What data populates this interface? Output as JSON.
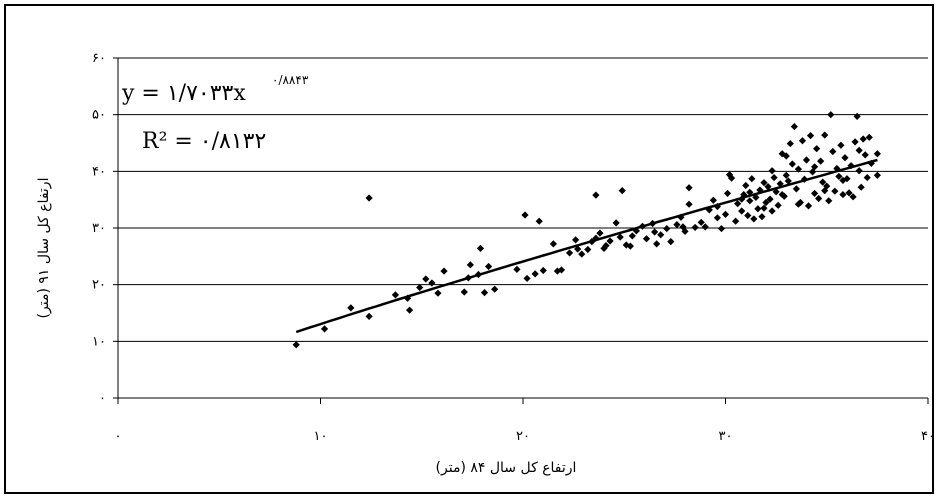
{
  "chart_data": {
    "type": "scatter",
    "xlabel": "ارتفاع کل سال ۸۴ (متر)",
    "ylabel": "ارتفاع کل سال ۹۱ (متر)",
    "xlim": [
      0,
      40
    ],
    "ylim": [
      0,
      60
    ],
    "x_ticks": [
      0,
      10,
      20,
      30,
      40
    ],
    "y_ticks": [
      0,
      10,
      20,
      30,
      40,
      50,
      60
    ],
    "x_tick_labels": [
      "۰",
      "۱۰",
      "۲۰",
      "۳۰",
      "۴۰"
    ],
    "y_tick_labels": [
      "۰",
      "۱۰",
      "۲۰",
      "۳۰",
      "۴۰",
      "۵۰",
      "۶۰"
    ],
    "grid": {
      "horizontal": true,
      "vertical": false
    },
    "trendline": {
      "type": "power",
      "coefficient": 1.7033,
      "exponent": 0.8843,
      "x_range": [
        8.8,
        37.5
      ],
      "equation_label": "y = ۱/۷۰۳۳x",
      "exponent_label": "۰/۸۸۴۳",
      "r2_label": "R² = ۰/۸۱۳۲"
    },
    "points": [
      [
        8.8,
        9.4
      ],
      [
        10.2,
        12.2
      ],
      [
        11.5,
        15.9
      ],
      [
        12.4,
        14.4
      ],
      [
        12.4,
        35.3
      ],
      [
        13.7,
        18.2
      ],
      [
        14.3,
        17.6
      ],
      [
        14.4,
        15.5
      ],
      [
        14.9,
        19.5
      ],
      [
        15.2,
        21.0
      ],
      [
        15.5,
        20.3
      ],
      [
        15.8,
        18.5
      ],
      [
        16.1,
        22.4
      ],
      [
        17.1,
        18.7
      ],
      [
        17.3,
        21.2
      ],
      [
        17.4,
        23.5
      ],
      [
        17.8,
        21.8
      ],
      [
        17.9,
        26.4
      ],
      [
        18.1,
        18.6
      ],
      [
        18.3,
        23.2
      ],
      [
        18.6,
        19.2
      ],
      [
        19.7,
        22.7
      ],
      [
        20.2,
        21.1
      ],
      [
        20.1,
        32.3
      ],
      [
        20.6,
        21.9
      ],
      [
        20.8,
        31.2
      ],
      [
        21.0,
        22.5
      ],
      [
        21.5,
        27.2
      ],
      [
        21.7,
        22.4
      ],
      [
        21.9,
        22.6
      ],
      [
        22.3,
        25.6
      ],
      [
        22.6,
        27.9
      ],
      [
        22.9,
        25.4
      ],
      [
        23.2,
        26.2
      ],
      [
        23.4,
        27.6
      ],
      [
        23.6,
        28.2
      ],
      [
        23.8,
        29.1
      ],
      [
        23.6,
        35.8
      ],
      [
        24.0,
        26.4
      ],
      [
        24.3,
        27.7
      ],
      [
        24.6,
        30.9
      ],
      [
        24.8,
        28.4
      ],
      [
        24.9,
        36.6
      ],
      [
        25.1,
        27.0
      ],
      [
        25.3,
        26.8
      ],
      [
        25.6,
        29.5
      ],
      [
        25.9,
        30.3
      ],
      [
        26.1,
        28.1
      ],
      [
        26.4,
        30.8
      ],
      [
        26.6,
        27.2
      ],
      [
        26.8,
        28.8
      ],
      [
        27.1,
        29.9
      ],
      [
        27.3,
        27.6
      ],
      [
        27.6,
        30.6
      ],
      [
        27.8,
        31.9
      ],
      [
        28.0,
        29.4
      ],
      [
        28.2,
        34.2
      ],
      [
        28.2,
        37.1
      ],
      [
        28.5,
        30.1
      ],
      [
        28.8,
        31.0
      ],
      [
        29.0,
        30.2
      ],
      [
        29.2,
        33.2
      ],
      [
        29.4,
        34.9
      ],
      [
        29.6,
        31.8
      ],
      [
        29.8,
        29.9
      ],
      [
        30.0,
        32.4
      ],
      [
        30.1,
        36.1
      ],
      [
        30.2,
        39.4
      ],
      [
        30.3,
        38.8
      ],
      [
        30.5,
        31.2
      ],
      [
        30.6,
        34.3
      ],
      [
        30.8,
        33.0
      ],
      [
        30.9,
        35.9
      ],
      [
        31.0,
        37.5
      ],
      [
        31.1,
        32.2
      ],
      [
        31.2,
        34.8
      ],
      [
        31.3,
        38.7
      ],
      [
        31.4,
        31.6
      ],
      [
        31.5,
        35.4
      ],
      [
        31.6,
        33.4
      ],
      [
        31.7,
        36.7
      ],
      [
        31.8,
        32.0
      ],
      [
        31.9,
        38.0
      ],
      [
        32.0,
        34.5
      ],
      [
        32.1,
        37.3
      ],
      [
        32.2,
        35.1
      ],
      [
        32.3,
        33.0
      ],
      [
        32.4,
        38.9
      ],
      [
        32.5,
        36.4
      ],
      [
        32.6,
        34.0
      ],
      [
        32.7,
        37.8
      ],
      [
        32.8,
        43.1
      ],
      [
        32.9,
        35.6
      ],
      [
        33.0,
        39.3
      ],
      [
        33.1,
        38.3
      ],
      [
        33.2,
        44.9
      ],
      [
        33.3,
        41.3
      ],
      [
        33.4,
        47.9
      ],
      [
        33.5,
        36.9
      ],
      [
        33.6,
        40.4
      ],
      [
        33.7,
        34.5
      ],
      [
        33.8,
        45.4
      ],
      [
        33.9,
        38.6
      ],
      [
        34.0,
        42.0
      ],
      [
        34.1,
        33.9
      ],
      [
        34.2,
        46.3
      ],
      [
        34.3,
        39.9
      ],
      [
        34.4,
        36.1
      ],
      [
        34.5,
        44.0
      ],
      [
        34.6,
        35.2
      ],
      [
        34.7,
        41.8
      ],
      [
        34.8,
        38.1
      ],
      [
        34.9,
        46.4
      ],
      [
        35.0,
        37.4
      ],
      [
        35.1,
        34.8
      ],
      [
        35.2,
        50.0
      ],
      [
        35.3,
        43.5
      ],
      [
        35.4,
        36.5
      ],
      [
        35.5,
        40.5
      ],
      [
        35.6,
        39.1
      ],
      [
        35.7,
        44.6
      ],
      [
        35.8,
        35.9
      ],
      [
        35.9,
        42.4
      ],
      [
        36.0,
        38.7
      ],
      [
        36.1,
        36.2
      ],
      [
        36.2,
        41.0
      ],
      [
        36.3,
        35.5
      ],
      [
        36.4,
        45.2
      ],
      [
        36.5,
        49.7
      ],
      [
        36.6,
        40.1
      ],
      [
        36.7,
        37.2
      ],
      [
        36.8,
        45.7
      ],
      [
        36.9,
        42.9
      ],
      [
        37.0,
        38.9
      ],
      [
        37.1,
        46.0
      ],
      [
        37.2,
        41.4
      ],
      [
        37.5,
        43.1
      ],
      [
        37.5,
        39.3
      ],
      [
        33.6,
        34.2
      ],
      [
        34.9,
        36.6
      ],
      [
        32.8,
        35.9
      ],
      [
        31.9,
        33.5
      ],
      [
        30.8,
        35.1
      ],
      [
        29.6,
        33.8
      ],
      [
        27.9,
        30.2
      ],
      [
        26.5,
        29.3
      ],
      [
        25.4,
        28.6
      ],
      [
        24.1,
        26.9
      ],
      [
        22.7,
        26.3
      ],
      [
        34.4,
        40.8
      ],
      [
        35.8,
        38.4
      ],
      [
        36.6,
        43.7
      ],
      [
        33.0,
        42.7
      ],
      [
        32.3,
        40.1
      ],
      [
        31.2,
        36.3
      ]
    ]
  }
}
